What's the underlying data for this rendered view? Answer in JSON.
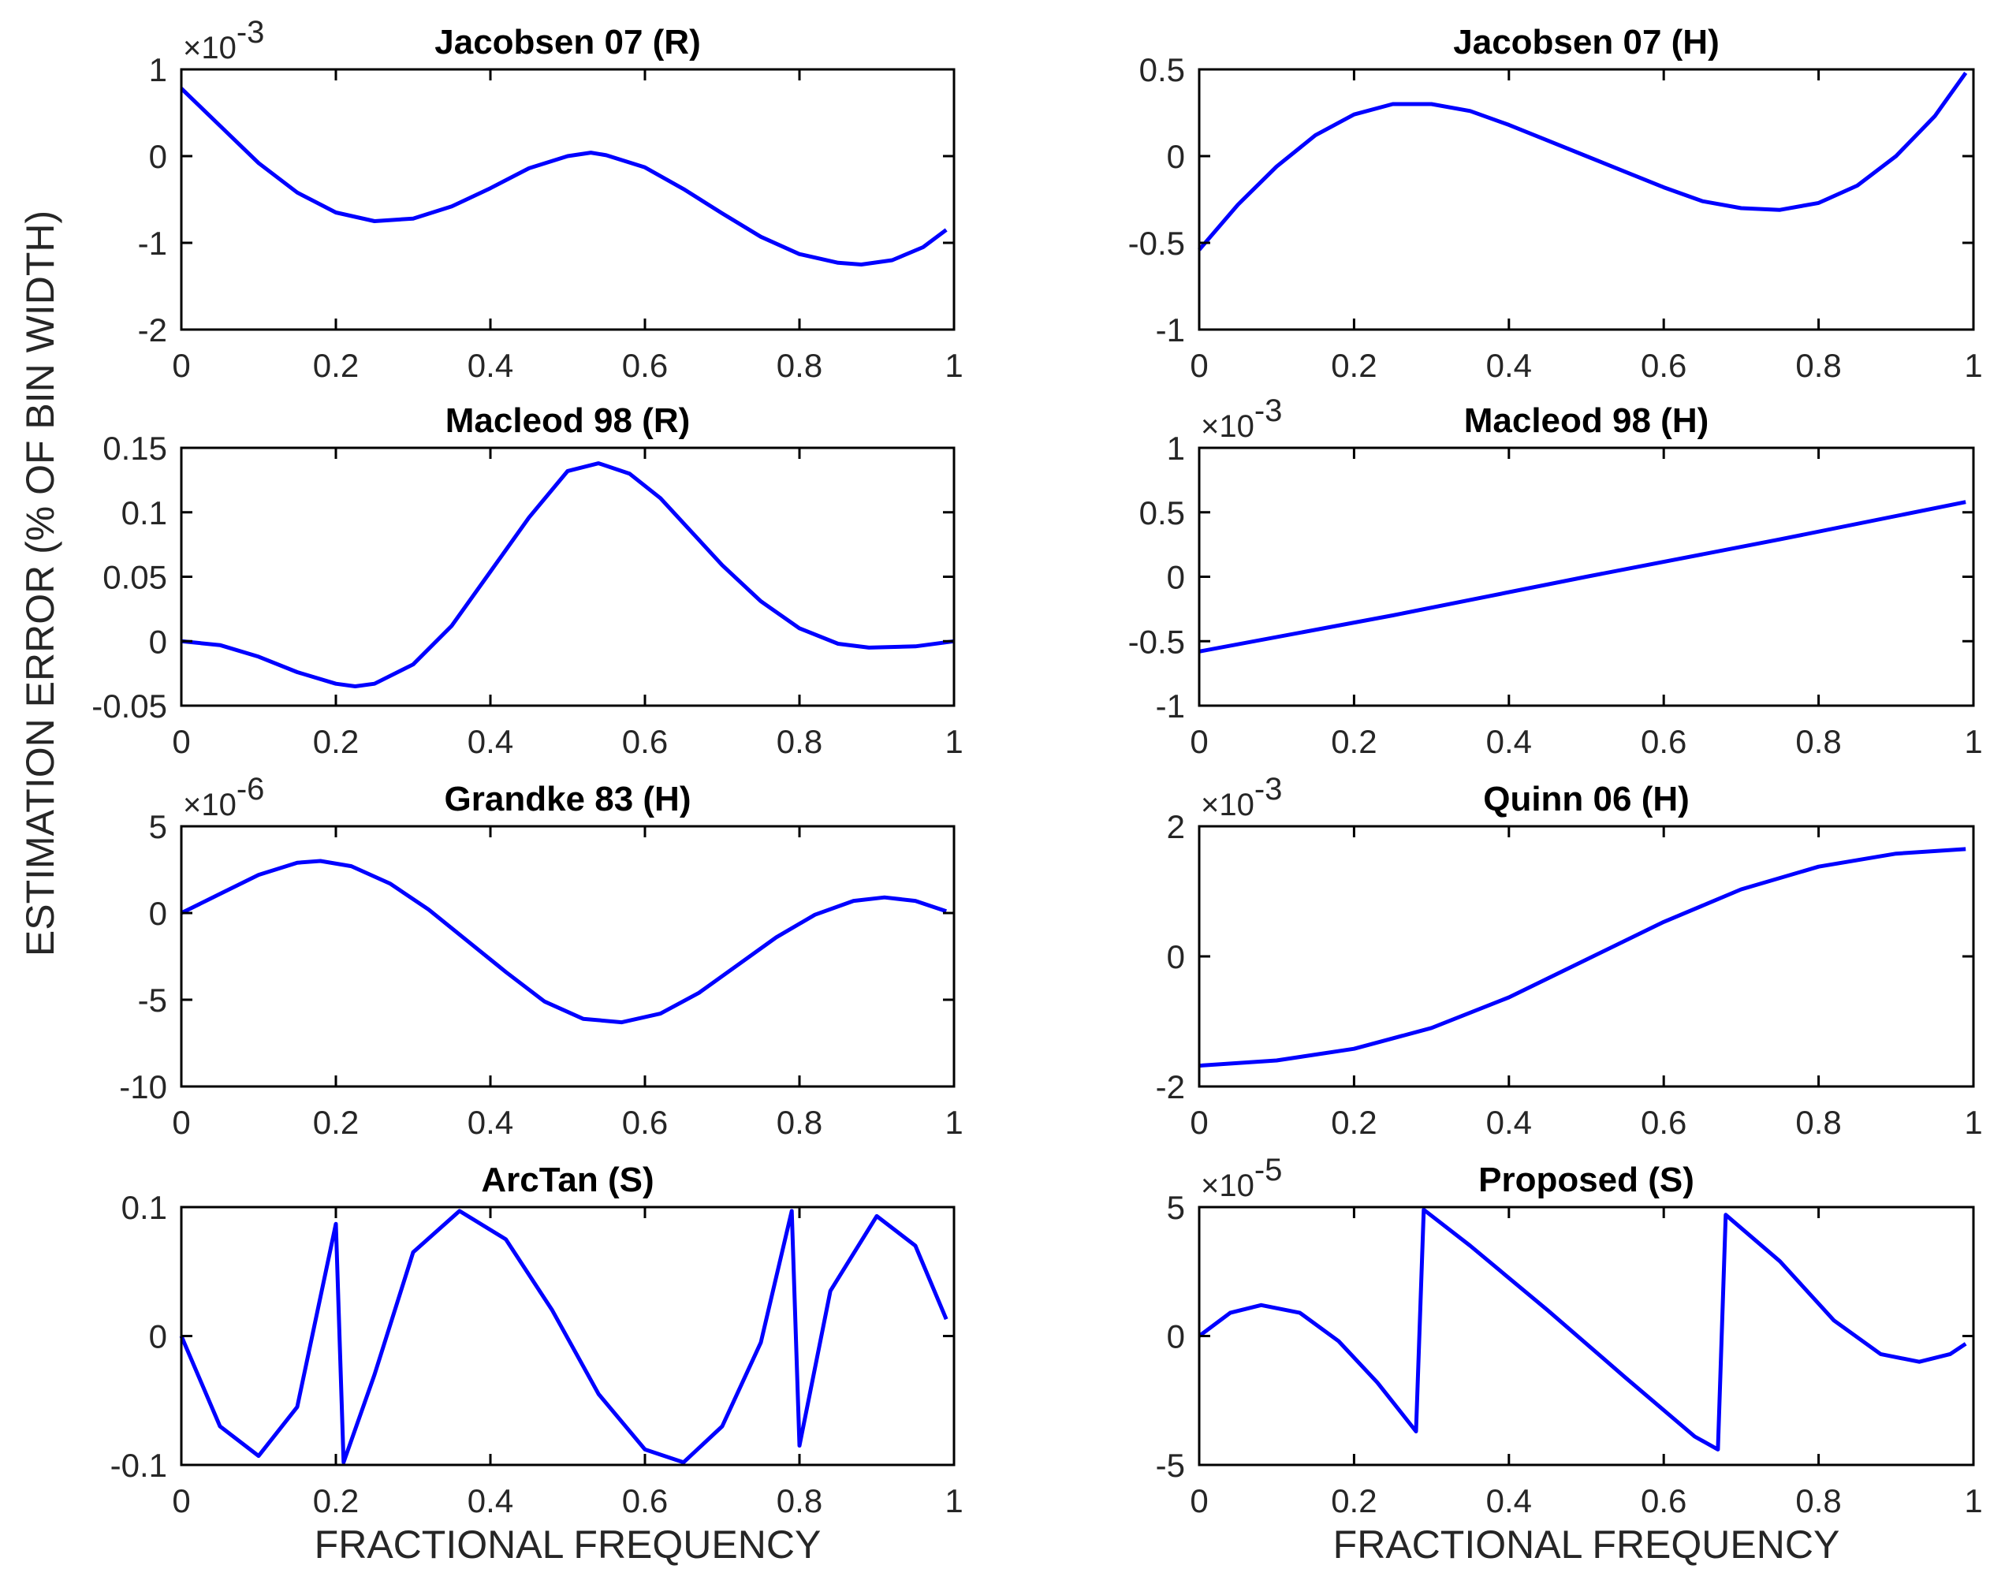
{
  "figure": {
    "ylabel": "ESTIMATION ERROR (% OF BIN WIDTH)",
    "xlabel": "FRACTIONAL FREQUENCY",
    "line_color": "#0000ff"
  },
  "chart_data": [
    {
      "type": "line",
      "title": "Jacobsen 07 (R)",
      "xlabel": "",
      "ylabel": "",
      "exponent": "-3",
      "xlim": [
        0,
        1
      ],
      "ylim": [
        -2,
        1
      ],
      "xticks": [
        0,
        0.2,
        0.4,
        0.6,
        0.8,
        1
      ],
      "xtick_labels": [
        "0",
        "0.2",
        "0.4",
        "0.6",
        "0.8",
        "1"
      ],
      "yticks": [
        -2,
        -1,
        0,
        1
      ],
      "ytick_labels": [
        "-2",
        "-1",
        "0",
        "1"
      ],
      "x": [
        0,
        0.05,
        0.1,
        0.15,
        0.2,
        0.25,
        0.3,
        0.35,
        0.4,
        0.45,
        0.5,
        0.53,
        0.55,
        0.6,
        0.65,
        0.7,
        0.75,
        0.8,
        0.85,
        0.88,
        0.92,
        0.96,
        0.99
      ],
      "y": [
        0.78,
        0.35,
        -0.08,
        -0.42,
        -0.65,
        -0.75,
        -0.72,
        -0.58,
        -0.37,
        -0.14,
        0.0,
        0.04,
        0.01,
        -0.13,
        -0.38,
        -0.66,
        -0.93,
        -1.13,
        -1.23,
        -1.25,
        -1.2,
        -1.05,
        -0.85
      ]
    },
    {
      "type": "line",
      "title": "Jacobsen 07 (H)",
      "xlabel": "",
      "ylabel": "",
      "exponent": "",
      "xlim": [
        0,
        1
      ],
      "ylim": [
        -1,
        0.5
      ],
      "xticks": [
        0,
        0.2,
        0.4,
        0.6,
        0.8,
        1
      ],
      "xtick_labels": [
        "0",
        "0.2",
        "0.4",
        "0.6",
        "0.8",
        "1"
      ],
      "yticks": [
        -1,
        -0.5,
        0,
        0.5
      ],
      "ytick_labels": [
        "-1",
        "-0.5",
        "0",
        "0.5"
      ],
      "x": [
        0,
        0.05,
        0.1,
        0.15,
        0.2,
        0.25,
        0.3,
        0.35,
        0.4,
        0.45,
        0.5,
        0.55,
        0.6,
        0.65,
        0.7,
        0.75,
        0.8,
        0.85,
        0.9,
        0.95,
        0.99
      ],
      "y": [
        -0.54,
        -0.28,
        -0.06,
        0.12,
        0.24,
        0.3,
        0.3,
        0.26,
        0.18,
        0.09,
        0.0,
        -0.09,
        -0.18,
        -0.26,
        -0.3,
        -0.31,
        -0.27,
        -0.17,
        0.0,
        0.23,
        0.48
      ]
    },
    {
      "type": "line",
      "title": "Macleod 98 (R)",
      "xlabel": "",
      "ylabel": "",
      "exponent": "",
      "xlim": [
        0,
        1
      ],
      "ylim": [
        -0.05,
        0.15
      ],
      "xticks": [
        0,
        0.2,
        0.4,
        0.6,
        0.8,
        1
      ],
      "xtick_labels": [
        "0",
        "0.2",
        "0.4",
        "0.6",
        "0.8",
        "1"
      ],
      "yticks": [
        -0.05,
        0,
        0.05,
        0.1,
        0.15
      ],
      "ytick_labels": [
        "-0.05",
        "0",
        "0.05",
        "0.1",
        "0.15"
      ],
      "x": [
        0,
        0.05,
        0.1,
        0.15,
        0.2,
        0.225,
        0.25,
        0.3,
        0.35,
        0.4,
        0.45,
        0.5,
        0.54,
        0.58,
        0.62,
        0.66,
        0.7,
        0.75,
        0.8,
        0.85,
        0.89,
        0.95,
        1.0
      ],
      "y": [
        0.0,
        -0.003,
        -0.012,
        -0.024,
        -0.033,
        -0.035,
        -0.033,
        -0.018,
        0.012,
        0.054,
        0.096,
        0.132,
        0.138,
        0.13,
        0.111,
        0.085,
        0.059,
        0.031,
        0.01,
        -0.002,
        -0.005,
        -0.004,
        0.0
      ]
    },
    {
      "type": "line",
      "title": "Macleod 98 (H)",
      "xlabel": "",
      "ylabel": "",
      "exponent": "-3",
      "xlim": [
        0,
        1
      ],
      "ylim": [
        -1,
        1
      ],
      "xticks": [
        0,
        0.2,
        0.4,
        0.6,
        0.8,
        1
      ],
      "xtick_labels": [
        "0",
        "0.2",
        "0.4",
        "0.6",
        "0.8",
        "1"
      ],
      "yticks": [
        -1,
        -0.5,
        0,
        0.5,
        1
      ],
      "ytick_labels": [
        "-1",
        "-0.5",
        "0",
        "0.5",
        "1"
      ],
      "x": [
        0,
        0.25,
        0.5,
        0.75,
        0.99
      ],
      "y": [
        -0.58,
        -0.3,
        0.0,
        0.29,
        0.58
      ]
    },
    {
      "type": "line",
      "title": "Grandke 83 (H)",
      "xlabel": "",
      "ylabel": "",
      "exponent": "-6",
      "xlim": [
        0,
        1
      ],
      "ylim": [
        -10,
        5
      ],
      "xticks": [
        0,
        0.2,
        0.4,
        0.6,
        0.8,
        1
      ],
      "xtick_labels": [
        "0",
        "0.2",
        "0.4",
        "0.6",
        "0.8",
        "1"
      ],
      "yticks": [
        -10,
        -5,
        0,
        5
      ],
      "ytick_labels": [
        "-10",
        "-5",
        "0",
        "5"
      ],
      "x": [
        0,
        0.05,
        0.1,
        0.15,
        0.18,
        0.22,
        0.27,
        0.32,
        0.37,
        0.42,
        0.47,
        0.52,
        0.57,
        0.62,
        0.67,
        0.72,
        0.77,
        0.82,
        0.87,
        0.91,
        0.95,
        0.99
      ],
      "y": [
        0.0,
        1.1,
        2.2,
        2.9,
        3.0,
        2.7,
        1.7,
        0.2,
        -1.6,
        -3.4,
        -5.1,
        -6.1,
        -6.3,
        -5.8,
        -4.6,
        -3.0,
        -1.4,
        -0.1,
        0.7,
        0.9,
        0.7,
        0.1
      ]
    },
    {
      "type": "line",
      "title": "Quinn 06 (H)",
      "xlabel": "",
      "ylabel": "",
      "exponent": "-3",
      "xlim": [
        0,
        1
      ],
      "ylim": [
        -2,
        2
      ],
      "xticks": [
        0,
        0.2,
        0.4,
        0.6,
        0.8,
        1
      ],
      "xtick_labels": [
        "0",
        "0.2",
        "0.4",
        "0.6",
        "0.8",
        "1"
      ],
      "yticks": [
        -2,
        0,
        2
      ],
      "ytick_labels": [
        "-2",
        "0",
        "2"
      ],
      "x": [
        0,
        0.1,
        0.2,
        0.3,
        0.4,
        0.5,
        0.6,
        0.7,
        0.8,
        0.9,
        0.99
      ],
      "y": [
        -1.68,
        -1.6,
        -1.42,
        -1.1,
        -0.63,
        -0.05,
        0.53,
        1.03,
        1.38,
        1.58,
        1.65
      ]
    },
    {
      "type": "line",
      "title": "ArcTan (S)",
      "xlabel": "FRACTIONAL FREQUENCY",
      "ylabel": "",
      "exponent": "",
      "xlim": [
        0,
        1
      ],
      "ylim": [
        -0.1,
        0.1
      ],
      "xticks": [
        0,
        0.2,
        0.4,
        0.6,
        0.8,
        1
      ],
      "xtick_labels": [
        "0",
        "0.2",
        "0.4",
        "0.6",
        "0.8",
        "1"
      ],
      "yticks": [
        -0.1,
        0,
        0.1
      ],
      "ytick_labels": [
        "-0.1",
        "0",
        "0.1"
      ],
      "x": [
        0,
        0.05,
        0.1,
        0.15,
        0.2,
        0.21,
        0.25,
        0.3,
        0.36,
        0.42,
        0.48,
        0.54,
        0.6,
        0.65,
        0.7,
        0.75,
        0.79,
        0.8,
        0.84,
        0.9,
        0.95,
        0.99
      ],
      "y": [
        0.0,
        -0.07,
        -0.093,
        -0.055,
        0.087,
        -0.098,
        -0.03,
        0.065,
        0.097,
        0.075,
        0.02,
        -0.045,
        -0.088,
        -0.098,
        -0.07,
        -0.005,
        0.097,
        -0.085,
        0.035,
        0.093,
        0.07,
        0.013
      ]
    },
    {
      "type": "line",
      "title": "Proposed (S)",
      "xlabel": "FRACTIONAL FREQUENCY",
      "ylabel": "",
      "exponent": "-5",
      "xlim": [
        0,
        1
      ],
      "ylim": [
        -5,
        5
      ],
      "xticks": [
        0,
        0.2,
        0.4,
        0.6,
        0.8,
        1
      ],
      "xtick_labels": [
        "0",
        "0.2",
        "0.4",
        "0.6",
        "0.8",
        "1"
      ],
      "yticks": [
        -5,
        0,
        5
      ],
      "ytick_labels": [
        "-5",
        "0",
        "5"
      ],
      "x": [
        0,
        0.04,
        0.08,
        0.13,
        0.18,
        0.23,
        0.28,
        0.29,
        0.35,
        0.45,
        0.55,
        0.64,
        0.67,
        0.68,
        0.75,
        0.82,
        0.88,
        0.93,
        0.97,
        0.99
      ],
      "y": [
        0.0,
        0.9,
        1.2,
        0.9,
        -0.2,
        -1.8,
        -3.7,
        4.9,
        3.5,
        1.0,
        -1.6,
        -3.9,
        -4.4,
        4.7,
        2.9,
        0.6,
        -0.7,
        -1.0,
        -0.7,
        -0.3
      ]
    }
  ]
}
